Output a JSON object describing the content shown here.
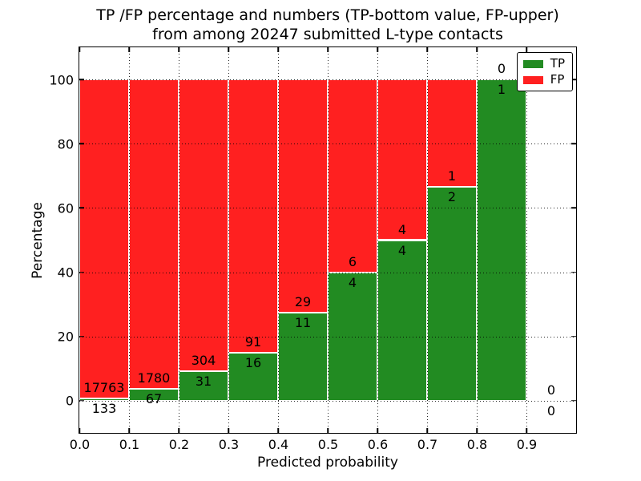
{
  "chart_data": {
    "type": "bar",
    "stacking": "percent",
    "title_lines": [
      "TP /FP percentage and numbers (TP-bottom value, FP-upper)",
      "from among 20247 submitted L-type contacts"
    ],
    "xlabel": "Predicted probability",
    "ylabel": "Percentage",
    "xlim": [
      0.0,
      1.0
    ],
    "ylim": [
      -10,
      110
    ],
    "x_tick_values": [
      0.0,
      0.1,
      0.2,
      0.3,
      0.4,
      0.5,
      0.6,
      0.7,
      0.8,
      0.9
    ],
    "x_tick_labels": [
      "0.0",
      "0.1",
      "0.2",
      "0.3",
      "0.4",
      "0.5",
      "0.6",
      "0.7",
      "0.8",
      "0.9"
    ],
    "y_tick_values": [
      0,
      20,
      40,
      60,
      80,
      100
    ],
    "y_tick_labels": [
      "0",
      "20",
      "40",
      "60",
      "80",
      "100"
    ],
    "grid": true,
    "legend": {
      "position": "upper-right",
      "items": [
        {
          "label": "TP",
          "color": "#228b22"
        },
        {
          "label": "FP",
          "color": "#ff2020"
        }
      ]
    },
    "colors": {
      "tp": "#228b22",
      "fp": "#ff2020",
      "bar_edge": "#ffffff",
      "grid": "#000000"
    },
    "bins": [
      {
        "range": [
          0.0,
          0.1
        ],
        "tp": 133,
        "fp": 17763
      },
      {
        "range": [
          0.1,
          0.2
        ],
        "tp": 67,
        "fp": 1780
      },
      {
        "range": [
          0.2,
          0.3
        ],
        "tp": 31,
        "fp": 304
      },
      {
        "range": [
          0.3,
          0.4
        ],
        "tp": 16,
        "fp": 91
      },
      {
        "range": [
          0.4,
          0.5
        ],
        "tp": 11,
        "fp": 29
      },
      {
        "range": [
          0.5,
          0.6
        ],
        "tp": 4,
        "fp": 6
      },
      {
        "range": [
          0.6,
          0.7
        ],
        "tp": 4,
        "fp": 4
      },
      {
        "range": [
          0.7,
          0.8
        ],
        "tp": 2,
        "fp": 1
      },
      {
        "range": [
          0.8,
          0.9
        ],
        "tp": 1,
        "fp": 0
      },
      {
        "range": [
          0.9,
          1.0
        ],
        "tp": 0,
        "fp": 0
      }
    ]
  }
}
